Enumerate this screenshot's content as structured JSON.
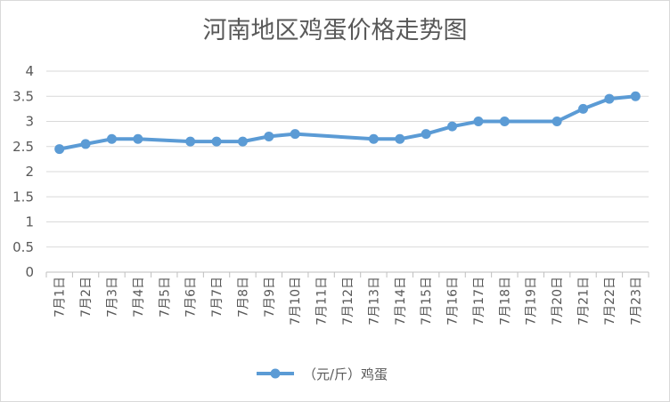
{
  "chart_data": {
    "type": "line",
    "title": "河南地区鸡蛋价格走势图",
    "xlabel": "",
    "ylabel": "",
    "ylim": [
      0,
      4
    ],
    "yticks": [
      "0",
      "0.5",
      "1",
      "1.5",
      "2",
      "2.5",
      "3",
      "3.5",
      "4"
    ],
    "grid": true,
    "legend_position": "bottom",
    "categories": [
      "7月1日",
      "7月2日",
      "7月3日",
      "7月4日",
      "7月5日",
      "7月6日",
      "7月7日",
      "7月8日",
      "7月9日",
      "7月10日",
      "7月11日",
      "7月12日",
      "7月13日",
      "7月14日",
      "7月15日",
      "7月16日",
      "7月17日",
      "7月18日",
      "7月19日",
      "7月20日",
      "7月21日",
      "7月22日",
      "7月23日"
    ],
    "series": [
      {
        "name": "（元/斤）鸡蛋",
        "color": "#5b9bd5",
        "values": [
          2.45,
          2.55,
          2.65,
          2.65,
          null,
          2.6,
          2.6,
          2.6,
          2.7,
          2.75,
          null,
          null,
          2.65,
          2.65,
          2.75,
          2.9,
          3.0,
          3.0,
          null,
          3.0,
          3.25,
          3.45,
          3.5
        ]
      }
    ]
  }
}
